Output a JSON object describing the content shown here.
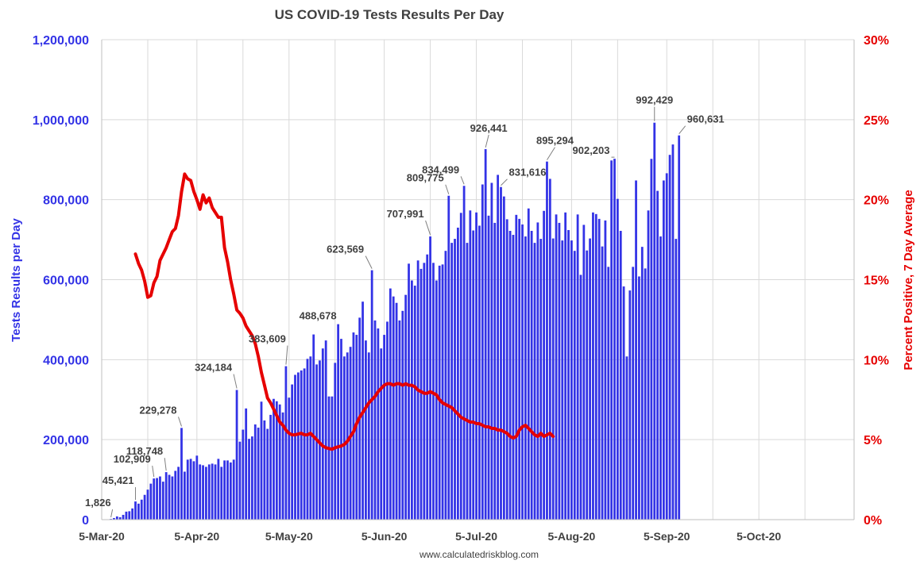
{
  "chart_data": {
    "type": "bar",
    "title": "US COVID-19 Tests Results Per Day",
    "source": "www.calculatedriskblog.com",
    "ylabel": "Tests Results per Day",
    "y2label": "Percent Positive, 7 Day Average",
    "ylim": [
      0,
      1200000
    ],
    "y2lim": [
      0,
      30
    ],
    "y_ticks": [
      "0",
      "200,000",
      "400,000",
      "600,000",
      "800,000",
      "1,000,000",
      "1,200,000"
    ],
    "y2_ticks": [
      "0%",
      "5%",
      "10%",
      "15%",
      "20%",
      "25%",
      "30%"
    ],
    "x_ticks": [
      "5-Mar-20",
      "5-Apr-20",
      "5-May-20",
      "5-Jun-20",
      "5-Jul-20",
      "5-Aug-20",
      "5-Sep-20",
      "5-Oct-20"
    ],
    "x_range_days": [
      0,
      245
    ],
    "grid": true,
    "colors": {
      "bars": "#3333e6",
      "line": "#e60000",
      "title": "#404040",
      "grid": "#d9d9d9"
    },
    "series": [
      {
        "name": "Tests Results per Day",
        "type": "bar",
        "axis": "left",
        "values": [
          300,
          500,
          1826,
          4000,
          8000,
          6000,
          12000,
          20000,
          21000,
          28000,
          45421,
          40000,
          50000,
          62000,
          75000,
          90000,
          102909,
          104000,
          108000,
          95000,
          118748,
          112000,
          108000,
          122000,
          132000,
          229278,
          120000,
          150000,
          152000,
          146000,
          160000,
          138000,
          136000,
          132000,
          138000,
          140000,
          138000,
          152000,
          132000,
          148000,
          148000,
          143000,
          150000,
          324184,
          195000,
          225000,
          278000,
          202000,
          208000,
          238000,
          230000,
          295000,
          248000,
          227000,
          262000,
          302000,
          296000,
          288000,
          268000,
          383609,
          305000,
          338000,
          362000,
          368000,
          373000,
          378000,
          402000,
          408000,
          463000,
          388000,
          398000,
          428000,
          448000,
          308000,
          308000,
          392000,
          488678,
          452000,
          408000,
          418000,
          432000,
          468000,
          462000,
          505000,
          545000,
          448000,
          418000,
          623569,
          498000,
          478000,
          428000,
          462000,
          495000,
          578000,
          558000,
          542000,
          498000,
          522000,
          562000,
          640000,
          598000,
          585000,
          648000,
          627000,
          642000,
          663000,
          707991,
          642000,
          598000,
          635000,
          638000,
          672000,
          809775,
          692000,
          702000,
          730000,
          767000,
          834499,
          692000,
          773000,
          723000,
          768000,
          735000,
          838000,
          926441,
          760000,
          842000,
          742000,
          862000,
          831616,
          808000,
          751000,
          722000,
          712000,
          762000,
          752000,
          738000,
          708000,
          778000,
          722000,
          692000,
          743000,
          702000,
          772000,
          895294,
          852000,
          703000,
          763000,
          742000,
          698000,
          768000,
          724000,
          698000,
          672000,
          763000,
          612000,
          737000,
          673000,
          703000,
          768000,
          764000,
          752000,
          683000,
          748000,
          632000,
          898000,
          902203,
          802000,
          722000,
          583000,
          408000,
          573000,
          632000,
          848000,
          608000,
          682000,
          628000,
          773000,
          902000,
          992429,
          822000,
          708000,
          848000,
          866000,
          912000,
          938000,
          702000,
          960631
        ],
        "labels": [
          {
            "text": "1,826",
            "value": 1826
          },
          {
            "text": "45,421",
            "value": 45421
          },
          {
            "text": "102,909",
            "value": 102909
          },
          {
            "text": "118,748",
            "value": 118748
          },
          {
            "text": "229,278",
            "value": 229278
          },
          {
            "text": "324,184",
            "value": 324184
          },
          {
            "text": "383,609",
            "value": 383609
          },
          {
            "text": "488,678",
            "value": 488678
          },
          {
            "text": "623,569",
            "value": 623569
          },
          {
            "text": "707,991",
            "value": 707991
          },
          {
            "text": "809,775",
            "value": 809775
          },
          {
            "text": "834,499",
            "value": 834499
          },
          {
            "text": "926,441",
            "value": 926441
          },
          {
            "text": "831,616",
            "value": 831616
          },
          {
            "text": "895,294",
            "value": 895294
          },
          {
            "text": "902,203",
            "value": 902203
          },
          {
            "text": "992,429",
            "value": 992429
          },
          {
            "text": "960,631",
            "value": 960631
          }
        ]
      },
      {
        "name": "Percent Positive, 7 Day Average",
        "type": "line",
        "axis": "right",
        "start_day": 11,
        "values": [
          16.6,
          16.0,
          15.6,
          14.9,
          13.9,
          14.0,
          14.8,
          15.2,
          16.2,
          16.6,
          17.0,
          17.5,
          18.0,
          18.2,
          19.0,
          20.5,
          21.6,
          21.3,
          21.2,
          20.5,
          20.0,
          19.4,
          20.3,
          19.8,
          20.1,
          19.5,
          19.2,
          18.9,
          18.9,
          17.0,
          16.1,
          15.0,
          14.1,
          13.1,
          12.9,
          12.6,
          12.1,
          11.8,
          11.5,
          11.0,
          10.2,
          9.2,
          8.4,
          7.6,
          7.3,
          6.9,
          6.5,
          6.1,
          5.9,
          5.6,
          5.4,
          5.3,
          5.3,
          5.35,
          5.4,
          5.3,
          5.3,
          5.4,
          5.2,
          5.0,
          4.8,
          4.6,
          4.5,
          4.45,
          4.4,
          4.5,
          4.55,
          4.6,
          4.7,
          4.9,
          5.2,
          5.5,
          6.0,
          6.4,
          6.7,
          7.0,
          7.3,
          7.5,
          7.7,
          8.0,
          8.2,
          8.4,
          8.5,
          8.5,
          8.4,
          8.5,
          8.5,
          8.4,
          8.5,
          8.4,
          8.4,
          8.3,
          8.1,
          8.0,
          7.9,
          7.9,
          8.0,
          7.9,
          7.8,
          7.5,
          7.3,
          7.2,
          7.1,
          7.0,
          6.8,
          6.6,
          6.4,
          6.3,
          6.2,
          6.1,
          6.1,
          6.0,
          6.0,
          5.9,
          5.8,
          5.8,
          5.7,
          5.7,
          5.6,
          5.6,
          5.5,
          5.4,
          5.2,
          5.1,
          5.2,
          5.6,
          5.8,
          5.9,
          5.7,
          5.5,
          5.3,
          5.2,
          5.4,
          5.2,
          5.3,
          5.4,
          5.2
        ]
      }
    ]
  }
}
